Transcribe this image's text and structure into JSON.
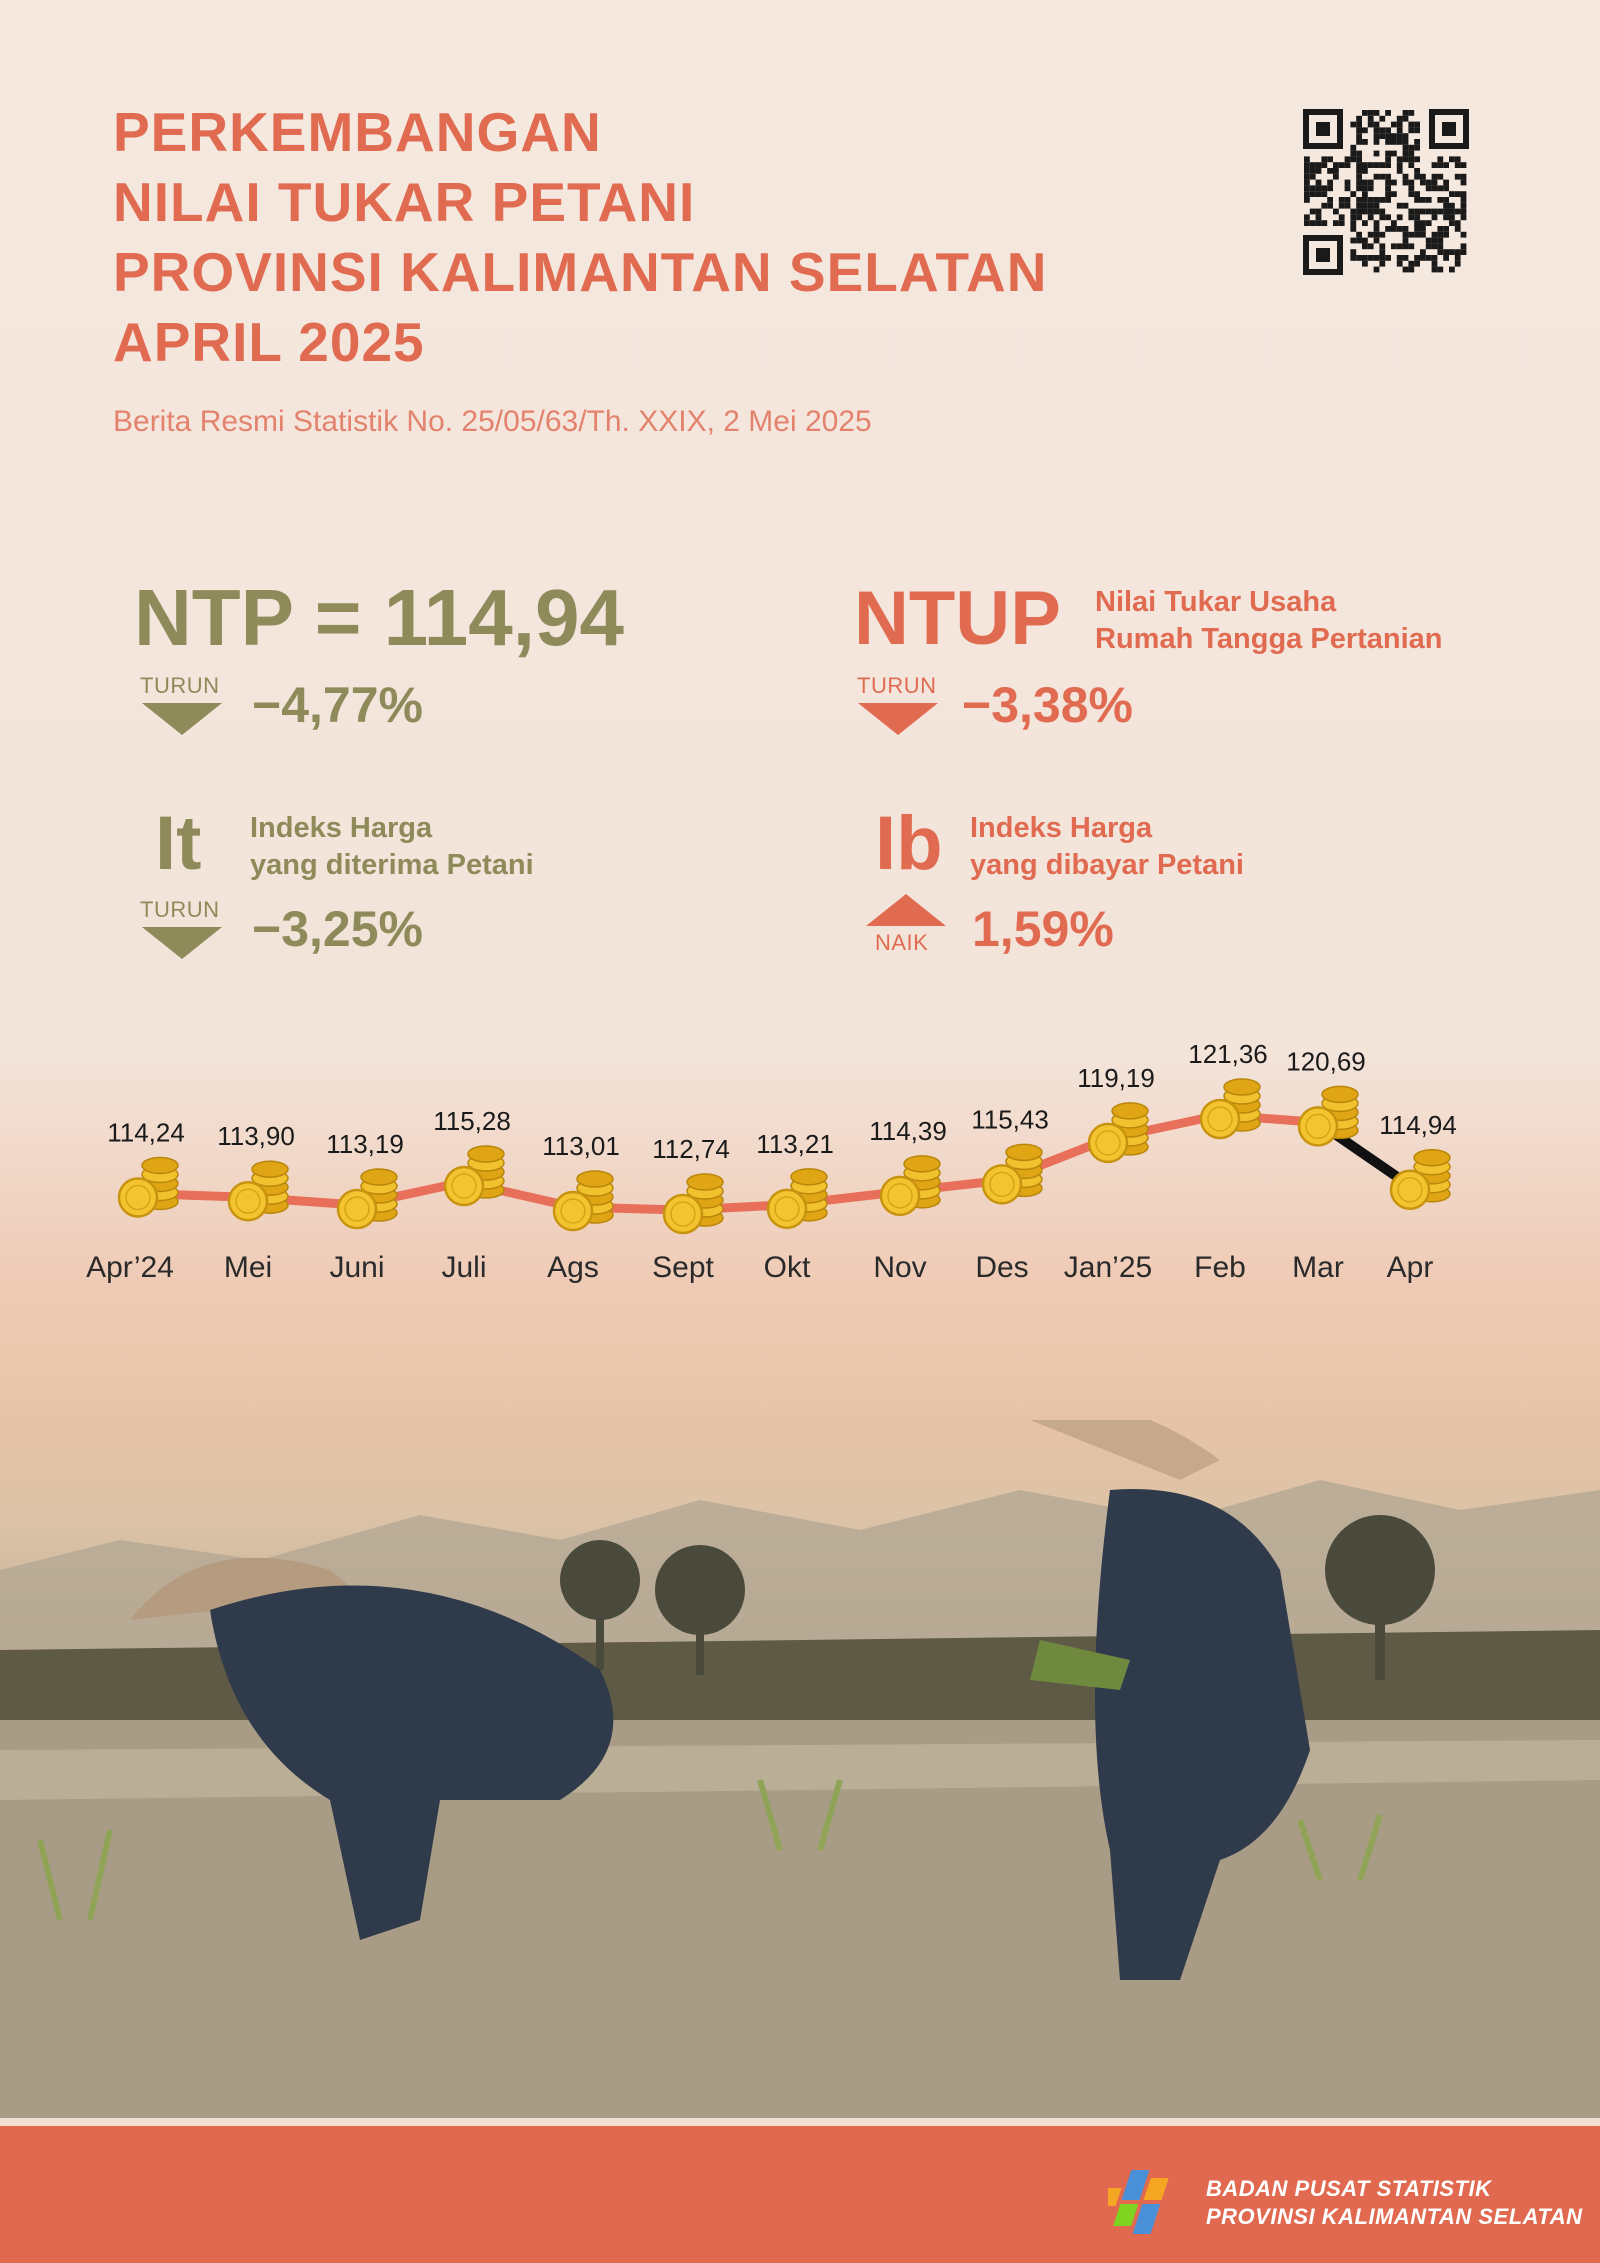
{
  "header": {
    "title_lines": [
      "PERKEMBANGAN",
      "NILAI TUKAR PETANI",
      "PROVINSI KALIMANTAN SELATAN",
      "APRIL 2025"
    ],
    "subtitle": "Berita Resmi Statistik No. 25/05/63/Th. XXIX, 2 Mei 2025"
  },
  "indicators": {
    "ntp": {
      "label": "NTP = 114,94",
      "direction": "TURUN",
      "change": "−4,77%"
    },
    "ntup": {
      "label": "NTUP",
      "desc_line1": "Nilai Tukar Usaha",
      "desc_line2": "Rumah Tangga Pertanian",
      "direction": "TURUN",
      "change": "−3,38%"
    },
    "it": {
      "label": "It",
      "desc_line1": "Indeks Harga",
      "desc_line2": "yang diterima Petani",
      "direction": "TURUN",
      "change": "−3,25%"
    },
    "ib": {
      "label": "Ib",
      "desc_line1": "Indeks Harga",
      "desc_line2": "yang dibayar Petani",
      "direction": "NAIK",
      "change": "1,59%"
    }
  },
  "chart_data": {
    "type": "line",
    "categories": [
      "Apr’24",
      "Mei",
      "Juni",
      "Juli",
      "Ags",
      "Sept",
      "Okt",
      "Nov",
      "Des",
      "Jan’25",
      "Feb",
      "Mar",
      "Apr"
    ],
    "values": [
      114.24,
      113.9,
      113.19,
      115.28,
      113.01,
      112.74,
      113.21,
      114.39,
      115.43,
      119.19,
      121.36,
      120.69,
      114.94
    ],
    "value_labels": [
      "114,24",
      "113,90",
      "113,19",
      "115,28",
      "113,01",
      "112,74",
      "113,21",
      "114,39",
      "115,43",
      "119,19",
      "121,36",
      "120,69",
      "114,94"
    ],
    "line_color": "#e8705a",
    "last_segment_color": "#111111",
    "marker": "coin-stack-icon"
  },
  "footer": {
    "org_line1": "BADAN PUSAT STATISTIK",
    "org_line2": "PROVINSI KALIMANTAN SELATAN"
  },
  "colors": {
    "accent": "#e06b51",
    "olive": "#8f8a5a",
    "footer": "#e0694f"
  }
}
